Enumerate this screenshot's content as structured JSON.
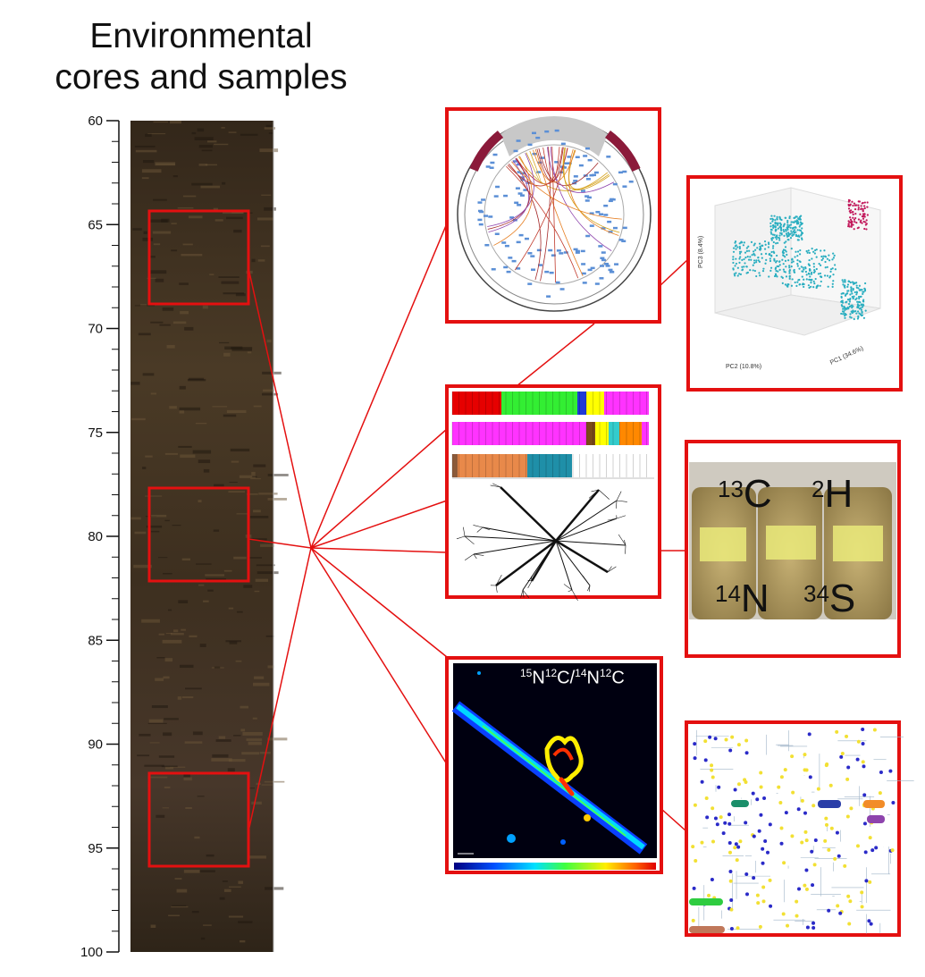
{
  "title_line1": "Environmental",
  "title_line2": "cores and samples",
  "axis": {
    "ticks": [
      "60",
      "65",
      "70",
      "75",
      "80",
      "85",
      "90",
      "95",
      "100"
    ]
  },
  "panels": {
    "pca": {
      "ylabel": "PC3 (8.4%)",
      "xlabel": "PC2 (10.8%)",
      "zlabel": "PC1 (34.6%)"
    },
    "isotopes": {
      "c13_mass": "13",
      "c13_el": "C",
      "h2_mass": "2",
      "h2_el": "H",
      "n14_mass": "14",
      "n14_el": "N",
      "s34_mass": "34",
      "s34_el": "S"
    },
    "nanosims": {
      "m1": "15",
      "e1": "N",
      "m2": "12",
      "e2": "C/",
      "m3": "14",
      "e3": "N",
      "m4": "12",
      "e4": "C"
    }
  },
  "colors": {
    "highlight": "#e41010",
    "core": "#3e2e1c"
  }
}
